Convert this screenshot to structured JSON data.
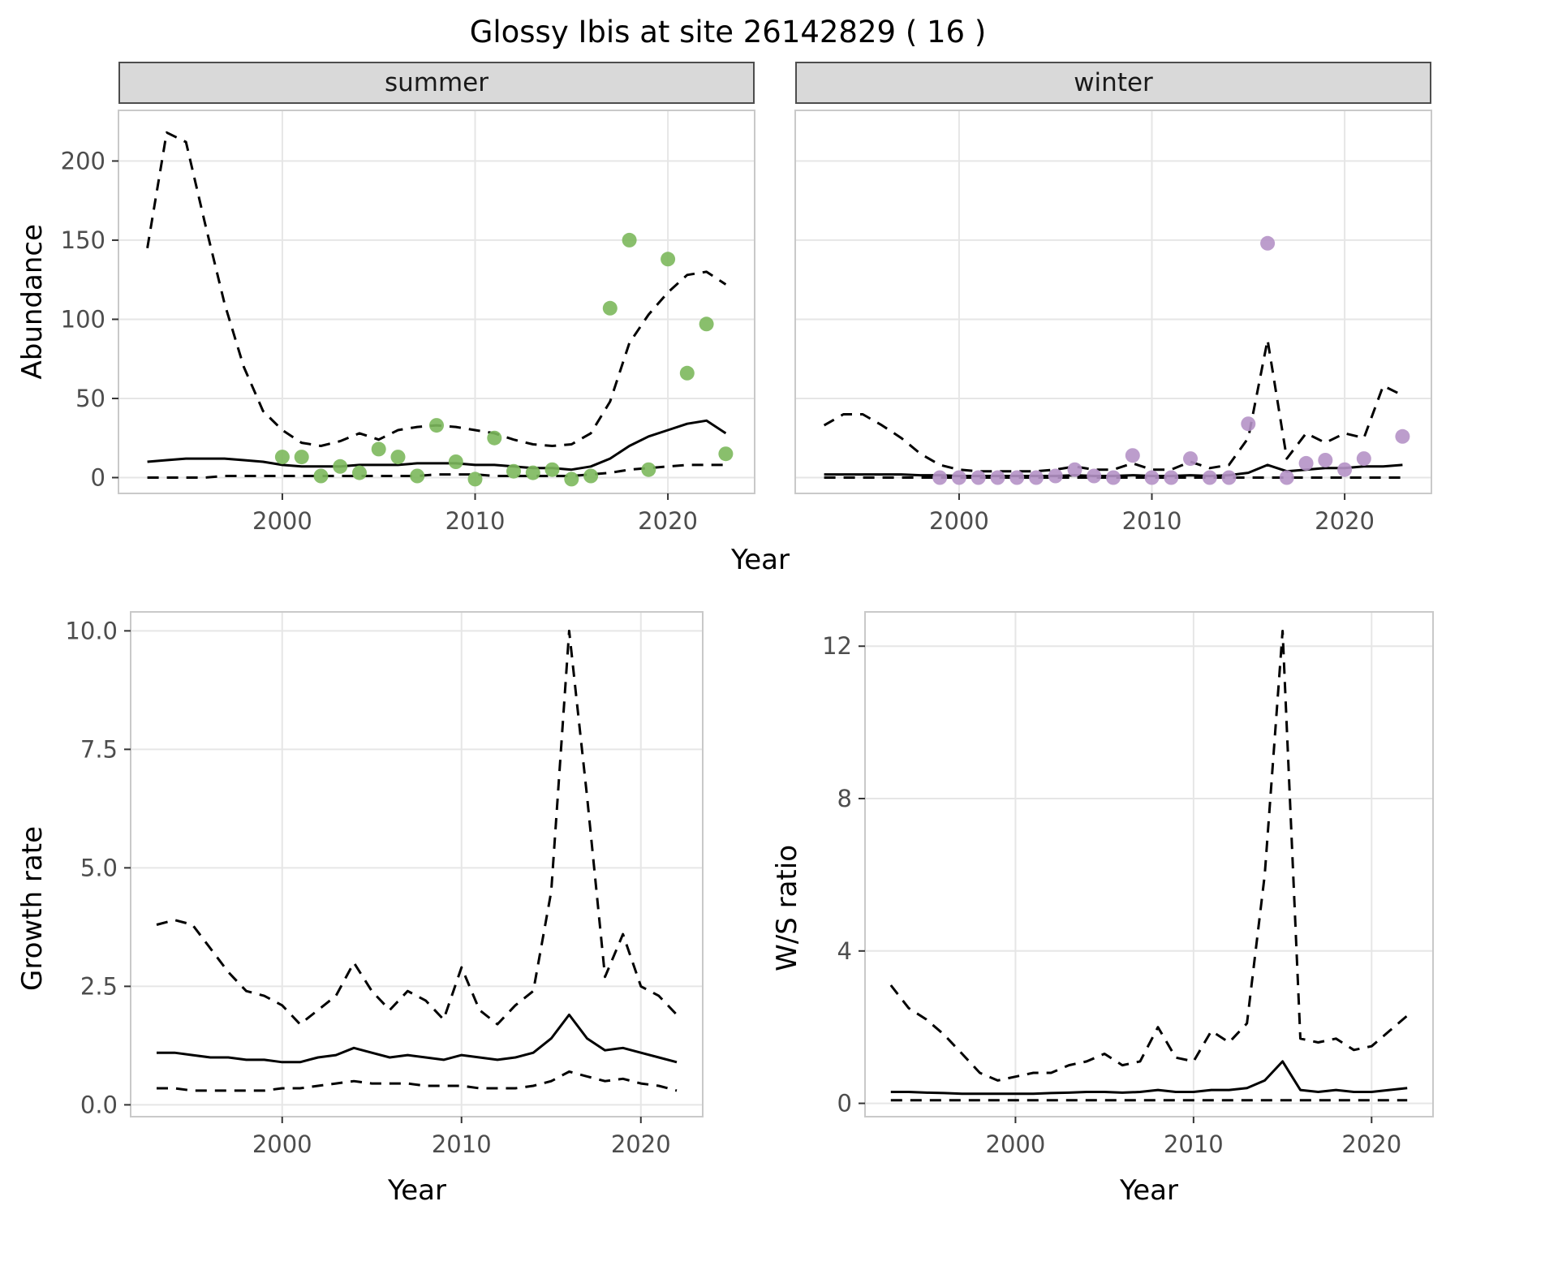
{
  "title": "Glossy Ibis at site 26142829 ( 16 )",
  "colors": {
    "summer_points": "#7cb85c",
    "winter_points": "#b592c6",
    "line": "#000000",
    "grid": "#e6e6e6",
    "panel_border": "#c9c9c9",
    "strip_bg": "#d9d9d9",
    "axis_text": "#4d4d4d"
  },
  "chart_data": [
    {
      "id": "summer-abundance",
      "type": "line",
      "title": "summer",
      "xlabel": "Year",
      "ylabel": "Abundance",
      "xlim": [
        1991.5,
        2024.5
      ],
      "ylim": [
        -10,
        232
      ],
      "grid": "on",
      "legend": "none",
      "xticks": {
        "values": [
          2000,
          2010,
          2020
        ],
        "labels": [
          "2000",
          "2010",
          "2020"
        ]
      },
      "yticks": {
        "values": [
          0,
          50,
          100,
          150,
          200
        ],
        "labels": [
          "0",
          "50",
          "100",
          "150",
          "200"
        ]
      },
      "series": [
        {
          "name": "upper-ci",
          "style": "dashed",
          "color": "#000000",
          "x": [
            1993,
            1994,
            1995,
            1996,
            1997,
            1998,
            1999,
            2000,
            2001,
            2002,
            2003,
            2004,
            2005,
            2006,
            2007,
            2008,
            2009,
            2010,
            2011,
            2012,
            2013,
            2014,
            2015,
            2016,
            2017,
            2018,
            2019,
            2020,
            2021,
            2022,
            2023
          ],
          "y": [
            145,
            218,
            212,
            160,
            110,
            70,
            42,
            30,
            22,
            20,
            23,
            28,
            24,
            30,
            32,
            33,
            32,
            30,
            28,
            24,
            21,
            20,
            21,
            28,
            48,
            85,
            103,
            117,
            128,
            130,
            122
          ]
        },
        {
          "name": "trend",
          "style": "solid",
          "color": "#000000",
          "x": [
            1993,
            1994,
            1995,
            1996,
            1997,
            1998,
            1999,
            2000,
            2001,
            2002,
            2003,
            2004,
            2005,
            2006,
            2007,
            2008,
            2009,
            2010,
            2011,
            2012,
            2013,
            2014,
            2015,
            2016,
            2017,
            2018,
            2019,
            2020,
            2021,
            2022,
            2023
          ],
          "y": [
            10,
            11,
            12,
            12,
            12,
            11,
            10,
            8,
            7,
            7,
            7,
            8,
            8,
            8,
            9,
            9,
            9,
            8,
            8,
            7,
            6,
            6,
            5,
            7,
            12,
            20,
            26,
            30,
            34,
            36,
            28
          ]
        },
        {
          "name": "lower-ci",
          "style": "dashed",
          "color": "#000000",
          "x": [
            1993,
            1994,
            1995,
            1996,
            1997,
            1998,
            1999,
            2000,
            2001,
            2002,
            2003,
            2004,
            2005,
            2006,
            2007,
            2008,
            2009,
            2010,
            2011,
            2012,
            2013,
            2014,
            2015,
            2016,
            2017,
            2018,
            2019,
            2020,
            2021,
            2022,
            2023
          ],
          "y": [
            0,
            0,
            0,
            0,
            1,
            1,
            1,
            1,
            1,
            1,
            1,
            1,
            1,
            1,
            1,
            2,
            2,
            2,
            1,
            1,
            1,
            1,
            1,
            2,
            3,
            5,
            6,
            7,
            8,
            8,
            8
          ]
        },
        {
          "name": "observed-counts",
          "style": "points",
          "color": "#7cb85c",
          "x": [
            2000,
            2001,
            2002,
            2003,
            2004,
            2005,
            2006,
            2007,
            2008,
            2009,
            2010,
            2011,
            2012,
            2013,
            2014,
            2015,
            2016,
            2017,
            2018,
            2019,
            2020,
            2021,
            2022,
            2023
          ],
          "y": [
            13,
            13,
            1,
            7,
            3,
            18,
            13,
            1,
            33,
            10,
            -1,
            25,
            4,
            3,
            5,
            -1,
            1,
            107,
            150,
            5,
            138,
            66,
            97,
            15
          ]
        }
      ]
    },
    {
      "id": "winter-abundance",
      "type": "line",
      "title": "winter",
      "xlabel": "Year",
      "ylabel": "Abundance",
      "xlim": [
        1991.5,
        2024.5
      ],
      "ylim": [
        -10,
        232
      ],
      "grid": "on",
      "legend": "none",
      "xticks": {
        "values": [
          2000,
          2010,
          2020
        ],
        "labels": [
          "2000",
          "2010",
          "2020"
        ]
      },
      "yticks": {
        "values": [
          0,
          50,
          100,
          150,
          200
        ],
        "labels": []
      },
      "series": [
        {
          "name": "upper-ci",
          "style": "dashed",
          "color": "#000000",
          "x": [
            1993,
            1994,
            1995,
            1996,
            1997,
            1998,
            1999,
            2000,
            2001,
            2002,
            2003,
            2004,
            2005,
            2006,
            2007,
            2008,
            2009,
            2010,
            2011,
            2012,
            2013,
            2014,
            2015,
            2016,
            2017,
            2018,
            2019,
            2020,
            2021,
            2022,
            2023
          ],
          "y": [
            33,
            40,
            40,
            33,
            25,
            15,
            8,
            5,
            4,
            4,
            4,
            4,
            5,
            7,
            5,
            5,
            9,
            5,
            5,
            10,
            6,
            8,
            25,
            87,
            12,
            28,
            22,
            28,
            25,
            58,
            52
          ]
        },
        {
          "name": "trend",
          "style": "solid",
          "color": "#000000",
          "x": [
            1993,
            1994,
            1995,
            1996,
            1997,
            1998,
            1999,
            2000,
            2001,
            2002,
            2003,
            2004,
            2005,
            2006,
            2007,
            2008,
            2009,
            2010,
            2011,
            2012,
            2013,
            2014,
            2015,
            2016,
            2017,
            2018,
            2019,
            2020,
            2021,
            2022,
            2023
          ],
          "y": [
            2,
            2,
            2,
            2,
            2,
            1.5,
            1.5,
            1,
            1,
            1,
            1,
            1,
            1,
            1.5,
            1,
            1,
            1.5,
            1,
            1,
            1.5,
            1,
            1.5,
            3,
            8,
            4,
            5,
            6,
            6,
            7,
            7,
            8
          ]
        },
        {
          "name": "lower-ci",
          "style": "dashed",
          "color": "#000000",
          "x": [
            1993,
            1994,
            1995,
            1996,
            1997,
            1998,
            1999,
            2000,
            2001,
            2002,
            2003,
            2004,
            2005,
            2006,
            2007,
            2008,
            2009,
            2010,
            2011,
            2012,
            2013,
            2014,
            2015,
            2016,
            2017,
            2018,
            2019,
            2020,
            2021,
            2022,
            2023
          ],
          "y": [
            0,
            0,
            0,
            0,
            0,
            0,
            0,
            0,
            0,
            0,
            0,
            0,
            0,
            0,
            0,
            0,
            0,
            0,
            0,
            0,
            0,
            0,
            0,
            0,
            0,
            0,
            0,
            0,
            0,
            0,
            0
          ]
        },
        {
          "name": "observed-counts",
          "style": "points",
          "color": "#b592c6",
          "x": [
            1999,
            2000,
            2001,
            2002,
            2003,
            2004,
            2005,
            2006,
            2007,
            2008,
            2009,
            2010,
            2011,
            2012,
            2013,
            2014,
            2015,
            2016,
            2017,
            2018,
            2019,
            2020,
            2021,
            2023
          ],
          "y": [
            0,
            0,
            0,
            0,
            0,
            0,
            1,
            5,
            1,
            0,
            14,
            0,
            0,
            12,
            0,
            0,
            34,
            148,
            0,
            9,
            11,
            5,
            12,
            26
          ]
        }
      ]
    },
    {
      "id": "growth-rate",
      "type": "line",
      "title": "",
      "xlabel": "Year",
      "ylabel": "Growth rate",
      "xlim": [
        1991.55,
        2023.45
      ],
      "ylim": [
        -0.25,
        10.4
      ],
      "grid": "on",
      "legend": "none",
      "xticks": {
        "values": [
          2000,
          2010,
          2020
        ],
        "labels": [
          "2000",
          "2010",
          "2020"
        ]
      },
      "yticks": {
        "values": [
          0,
          2.5,
          5,
          7.5,
          10
        ],
        "labels": [
          "0.0",
          "2.5",
          "5.0",
          "7.5",
          "10.0"
        ]
      },
      "series": [
        {
          "name": "upper-ci",
          "style": "dashed",
          "color": "#000000",
          "x": [
            1993,
            1994,
            1995,
            1996,
            1997,
            1998,
            1999,
            2000,
            2001,
            2002,
            2003,
            2004,
            2005,
            2006,
            2007,
            2008,
            2009,
            2010,
            2011,
            2012,
            2013,
            2014,
            2015,
            2016,
            2017,
            2018,
            2019,
            2020,
            2021,
            2022
          ],
          "y": [
            3.8,
            3.9,
            3.8,
            3.3,
            2.8,
            2.4,
            2.3,
            2.1,
            1.7,
            2.0,
            2.3,
            3.0,
            2.4,
            2.0,
            2.4,
            2.2,
            1.8,
            2.9,
            2.0,
            1.7,
            2.1,
            2.4,
            4.5,
            10.0,
            6.5,
            2.7,
            3.6,
            2.5,
            2.3,
            1.9
          ]
        },
        {
          "name": "trend",
          "style": "solid",
          "color": "#000000",
          "x": [
            1993,
            1994,
            1995,
            1996,
            1997,
            1998,
            1999,
            2000,
            2001,
            2002,
            2003,
            2004,
            2005,
            2006,
            2007,
            2008,
            2009,
            2010,
            2011,
            2012,
            2013,
            2014,
            2015,
            2016,
            2017,
            2018,
            2019,
            2020,
            2021,
            2022
          ],
          "y": [
            1.1,
            1.1,
            1.05,
            1.0,
            1.0,
            0.95,
            0.95,
            0.9,
            0.9,
            1.0,
            1.05,
            1.2,
            1.1,
            1.0,
            1.05,
            1.0,
            0.95,
            1.05,
            1.0,
            0.95,
            1.0,
            1.1,
            1.4,
            1.9,
            1.4,
            1.15,
            1.2,
            1.1,
            1.0,
            0.9
          ]
        },
        {
          "name": "lower-ci",
          "style": "dashed",
          "color": "#000000",
          "x": [
            1993,
            1994,
            1995,
            1996,
            1997,
            1998,
            1999,
            2000,
            2001,
            2002,
            2003,
            2004,
            2005,
            2006,
            2007,
            2008,
            2009,
            2010,
            2011,
            2012,
            2013,
            2014,
            2015,
            2016,
            2017,
            2018,
            2019,
            2020,
            2021,
            2022
          ],
          "y": [
            0.35,
            0.35,
            0.3,
            0.3,
            0.3,
            0.3,
            0.3,
            0.35,
            0.35,
            0.4,
            0.45,
            0.5,
            0.45,
            0.45,
            0.45,
            0.4,
            0.4,
            0.4,
            0.35,
            0.35,
            0.35,
            0.4,
            0.5,
            0.7,
            0.6,
            0.5,
            0.55,
            0.45,
            0.4,
            0.3
          ]
        }
      ]
    },
    {
      "id": "ws-ratio",
      "type": "line",
      "title": "",
      "xlabel": "Year",
      "ylabel": "W/S ratio",
      "xlim": [
        1991.55,
        2023.45
      ],
      "ylim": [
        -0.35,
        12.9
      ],
      "grid": "on",
      "legend": "none",
      "xticks": {
        "values": [
          2000,
          2010,
          2020
        ],
        "labels": [
          "2000",
          "2010",
          "2020"
        ]
      },
      "yticks": {
        "values": [
          0,
          4,
          8,
          12
        ],
        "labels": [
          "0",
          "4",
          "8",
          "12"
        ]
      },
      "series": [
        {
          "name": "upper-ci",
          "style": "dashed",
          "color": "#000000",
          "x": [
            1993,
            1994,
            1995,
            1996,
            1997,
            1998,
            1999,
            2000,
            2001,
            2002,
            2003,
            2004,
            2005,
            2006,
            2007,
            2008,
            2009,
            2010,
            2011,
            2012,
            2013,
            2014,
            2015,
            2016,
            2017,
            2018,
            2019,
            2020,
            2021,
            2022
          ],
          "y": [
            3.1,
            2.5,
            2.2,
            1.8,
            1.3,
            0.8,
            0.6,
            0.7,
            0.8,
            0.8,
            1.0,
            1.1,
            1.3,
            1.0,
            1.1,
            2.0,
            1.2,
            1.1,
            1.9,
            1.6,
            2.1,
            6.0,
            12.4,
            1.7,
            1.6,
            1.7,
            1.4,
            1.5,
            1.9,
            2.3
          ]
        },
        {
          "name": "trend",
          "style": "solid",
          "color": "#000000",
          "x": [
            1993,
            1994,
            1995,
            1996,
            1997,
            1998,
            1999,
            2000,
            2001,
            2002,
            2003,
            2004,
            2005,
            2006,
            2007,
            2008,
            2009,
            2010,
            2011,
            2012,
            2013,
            2014,
            2015,
            2016,
            2017,
            2018,
            2019,
            2020,
            2021,
            2022
          ],
          "y": [
            0.3,
            0.3,
            0.28,
            0.27,
            0.25,
            0.25,
            0.25,
            0.25,
            0.25,
            0.27,
            0.28,
            0.3,
            0.3,
            0.28,
            0.3,
            0.35,
            0.3,
            0.3,
            0.35,
            0.35,
            0.4,
            0.6,
            1.1,
            0.35,
            0.3,
            0.35,
            0.3,
            0.3,
            0.35,
            0.4
          ]
        },
        {
          "name": "lower-ci",
          "style": "dashed",
          "color": "#000000",
          "x": [
            1993,
            1994,
            1995,
            1996,
            1997,
            1998,
            1999,
            2000,
            2001,
            2002,
            2003,
            2004,
            2005,
            2006,
            2007,
            2008,
            2009,
            2010,
            2011,
            2012,
            2013,
            2014,
            2015,
            2016,
            2017,
            2018,
            2019,
            2020,
            2021,
            2022
          ],
          "y": [
            0.08,
            0.08,
            0.08,
            0.08,
            0.08,
            0.08,
            0.08,
            0.08,
            0.08,
            0.08,
            0.08,
            0.08,
            0.08,
            0.08,
            0.08,
            0.08,
            0.08,
            0.08,
            0.08,
            0.08,
            0.08,
            0.08,
            0.08,
            0.08,
            0.08,
            0.08,
            0.08,
            0.08,
            0.08,
            0.08
          ]
        }
      ]
    }
  ]
}
